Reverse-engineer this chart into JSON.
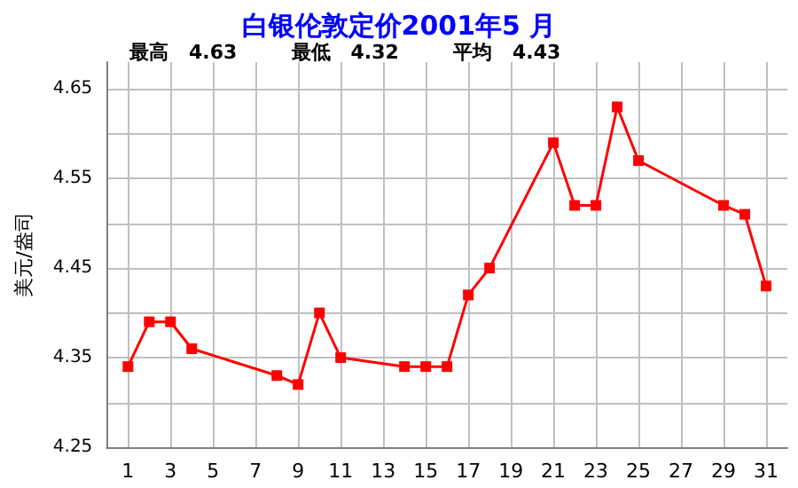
{
  "chart_data": {
    "type": "line",
    "title": "白银伦敦定价2001年5 月",
    "subtitle": "最高   4.63        最低   4.32        平均   4.43",
    "ylabel": "美元/盎司",
    "x": [
      1,
      2,
      3,
      4,
      8,
      9,
      10,
      11,
      14,
      15,
      16,
      17,
      18,
      21,
      22,
      23,
      24,
      25,
      29,
      30,
      31
    ],
    "series": [
      {
        "color": "#ff0000",
        "values": [
          4.34,
          4.39,
          4.39,
          4.36,
          4.33,
          4.32,
          4.4,
          4.35,
          4.34,
          4.34,
          4.34,
          4.42,
          4.45,
          4.59,
          4.52,
          4.52,
          4.63,
          4.57,
          4.52,
          4.51,
          4.43
        ]
      }
    ],
    "xlim": [
      0,
      32
    ],
    "xticks": [
      1,
      3,
      5,
      7,
      9,
      11,
      13,
      15,
      17,
      19,
      21,
      23,
      25,
      27,
      29,
      31
    ],
    "ylim": [
      4.25,
      4.68
    ],
    "yticks": [
      4.25,
      {
        "value": 4.3,
        "label": null
      },
      4.35,
      {
        "value": 4.4,
        "label": null
      },
      4.45,
      {
        "value": 4.5,
        "label": null
      },
      4.55,
      {
        "value": 4.6,
        "label": null
      },
      4.65
    ],
    "grid": true,
    "marker": "square",
    "line_style": "solid"
  }
}
